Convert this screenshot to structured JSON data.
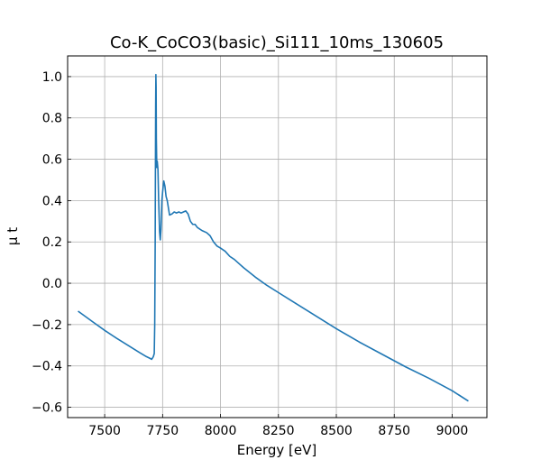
{
  "chart_data": {
    "type": "line",
    "title": "Co-K_CoCO3(basic)_Si111_10ms_130605",
    "xlabel": "Energy [eV]",
    "ylabel": "μ t",
    "xlim": [
      7340,
      9150
    ],
    "ylim": [
      -0.65,
      1.1
    ],
    "grid": true,
    "x_ticks": [
      7500,
      7750,
      8000,
      8250,
      8500,
      8750,
      9000
    ],
    "y_ticks": [
      -0.6,
      -0.4,
      -0.2,
      0.0,
      0.2,
      0.4,
      0.6,
      0.8,
      1.0
    ],
    "x_tick_labels": [
      "7500",
      "7750",
      "8000",
      "8250",
      "8500",
      "8750",
      "9000"
    ],
    "y_tick_labels": [
      "−0.6",
      "−0.4",
      "−0.2",
      "0.0",
      "0.2",
      "0.4",
      "0.6",
      "0.8",
      "1.0"
    ],
    "line_color": "#1f77b4",
    "series": [
      {
        "x": [
          7385,
          7450,
          7500,
          7550,
          7600,
          7650,
          7680,
          7695,
          7703,
          7710,
          7714,
          7716,
          7718,
          7719,
          7720,
          7721,
          7722,
          7723,
          7725,
          7727,
          7730,
          7733,
          7737,
          7740,
          7743,
          7747,
          7750,
          7755,
          7760,
          7765,
          7770,
          7775,
          7780,
          7790,
          7800,
          7810,
          7820,
          7830,
          7840,
          7850,
          7860,
          7870,
          7880,
          7890,
          7900,
          7920,
          7940,
          7955,
          7970,
          7985,
          8000,
          8020,
          8040,
          8060,
          8080,
          8100,
          8150,
          8200,
          8250,
          8300,
          8400,
          8500,
          8600,
          8700,
          8800,
          8900,
          9000,
          9070
        ],
        "y": [
          -0.135,
          -0.188,
          -0.228,
          -0.265,
          -0.3,
          -0.335,
          -0.355,
          -0.363,
          -0.368,
          -0.355,
          -0.34,
          -0.2,
          0.2,
          0.55,
          0.85,
          1.01,
          0.95,
          0.7,
          0.56,
          0.59,
          0.55,
          0.4,
          0.25,
          0.21,
          0.26,
          0.4,
          0.44,
          0.495,
          0.47,
          0.42,
          0.4,
          0.365,
          0.33,
          0.335,
          0.345,
          0.34,
          0.345,
          0.34,
          0.345,
          0.35,
          0.335,
          0.3,
          0.285,
          0.285,
          0.27,
          0.255,
          0.245,
          0.23,
          0.2,
          0.18,
          0.17,
          0.155,
          0.13,
          0.115,
          0.095,
          0.075,
          0.03,
          -0.01,
          -0.045,
          -0.08,
          -0.15,
          -0.22,
          -0.285,
          -0.345,
          -0.405,
          -0.46,
          -0.52,
          -0.57
        ]
      }
    ]
  }
}
